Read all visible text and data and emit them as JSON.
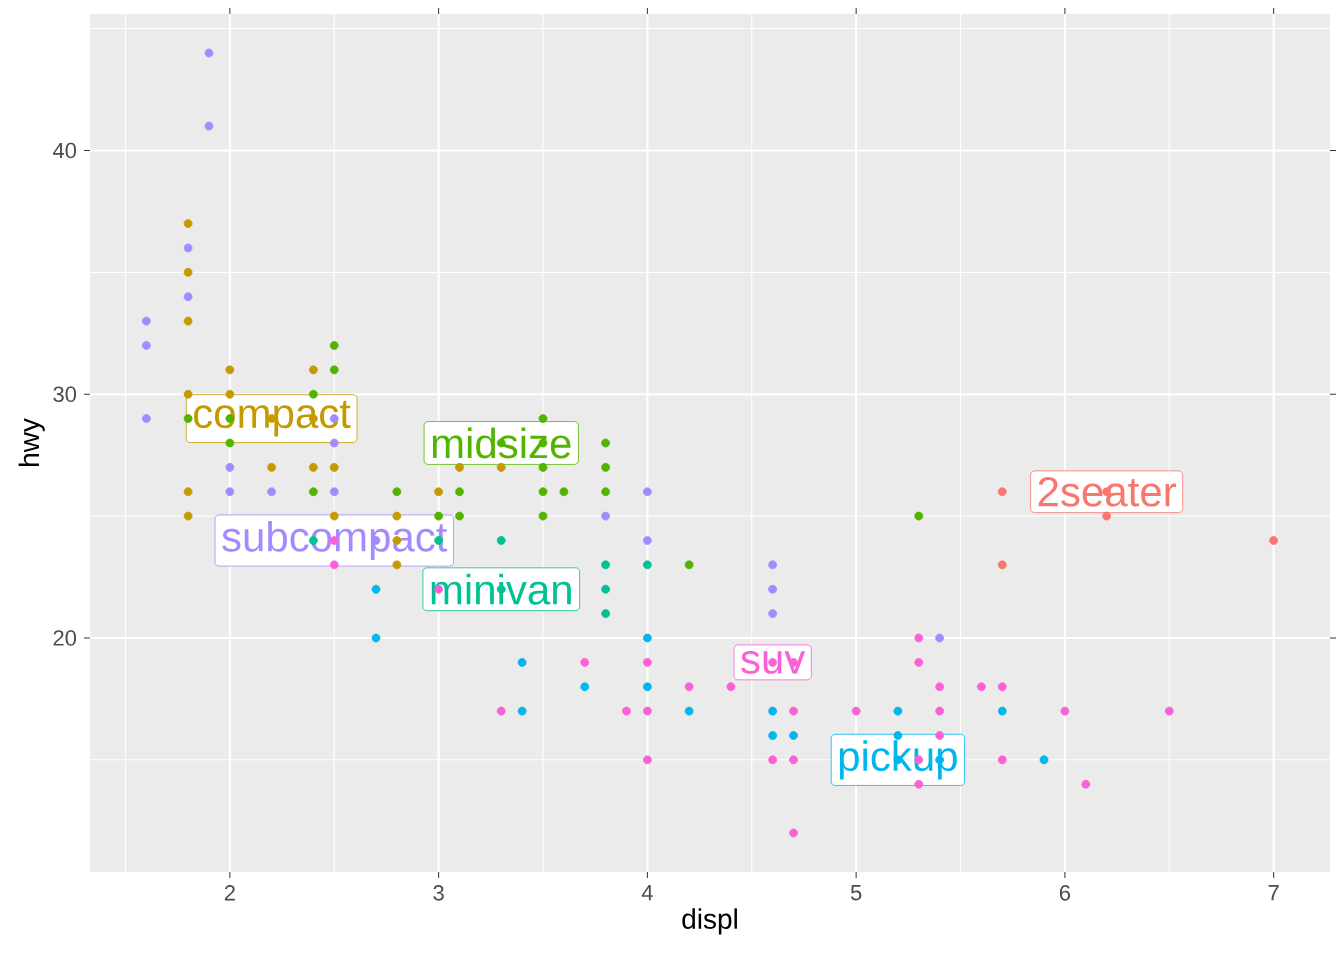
{
  "chart_data": {
    "type": "scatter",
    "xlabel": "displ",
    "ylabel": "hwy",
    "xlim": [
      1.33,
      7.27
    ],
    "ylim": [
      10.4,
      45.6
    ],
    "xticks": [
      2,
      3,
      4,
      5,
      6,
      7
    ],
    "yticks": [
      20,
      30,
      40
    ],
    "grid": true,
    "marker": "circle",
    "series": [
      {
        "color": "#f8766d",
        "x": [
          5.7,
          5.7,
          6.2,
          6.2,
          7.0
        ],
        "values": [
          26,
          23,
          26,
          25,
          24
        ]
      },
      {
        "color": "#c49a00",
        "x": [
          1.8,
          1.8,
          1.8,
          1.8,
          1.8,
          1.8,
          2.0,
          2.0,
          2.2,
          2.2,
          2.4,
          2.4,
          2.4,
          2.5,
          2.5,
          2.8,
          2.8,
          2.8,
          3.0,
          3.1,
          3.3
        ],
        "values": [
          37,
          35,
          33,
          30,
          26,
          25,
          31,
          30,
          29,
          27,
          31,
          29,
          27,
          27,
          25,
          25,
          24,
          23,
          26,
          27,
          27
        ]
      },
      {
        "color": "#53b400",
        "x": [
          1.8,
          2.0,
          2.0,
          2.4,
          2.4,
          2.5,
          2.5,
          2.8,
          3.0,
          3.1,
          3.1,
          3.3,
          3.5,
          3.5,
          3.5,
          3.5,
          3.5,
          3.6,
          3.8,
          3.8,
          3.8,
          4.2,
          5.3
        ],
        "values": [
          29,
          29,
          28,
          30,
          26,
          32,
          31,
          26,
          25,
          26,
          25,
          28,
          29,
          28,
          27,
          26,
          25,
          26,
          28,
          27,
          26,
          23,
          25
        ]
      },
      {
        "color": "#00c094",
        "x": [
          2.4,
          3.0,
          3.3,
          3.3,
          3.8,
          3.8,
          3.8,
          4.0
        ],
        "values": [
          24,
          24,
          24,
          22,
          23,
          22,
          21,
          23
        ]
      },
      {
        "color": "#00b6eb",
        "x": [
          2.7,
          2.7,
          3.4,
          3.4,
          3.7,
          4.0,
          4.0,
          4.2,
          4.6,
          4.6,
          4.7,
          5.2,
          5.2,
          5.2,
          5.4,
          5.7,
          5.9
        ],
        "values": [
          22,
          20,
          19,
          17,
          18,
          20,
          18,
          17,
          17,
          16,
          16,
          17,
          16,
          15,
          15,
          17,
          15
        ]
      },
      {
        "color": "#a58aff",
        "x": [
          1.6,
          1.6,
          1.6,
          1.8,
          1.8,
          1.9,
          1.9,
          2.0,
          2.0,
          2.2,
          2.5,
          2.5,
          2.5,
          2.7,
          3.8,
          4.0,
          4.0,
          4.6,
          4.6,
          4.6,
          5.4
        ],
        "values": [
          33,
          32,
          29,
          36,
          34,
          44,
          41,
          27,
          26,
          26,
          29,
          28,
          26,
          24,
          25,
          26,
          24,
          23,
          22,
          21,
          20
        ]
      },
      {
        "color": "#fb61d7",
        "x": [
          2.5,
          2.5,
          3.0,
          3.3,
          3.7,
          3.9,
          4.0,
          4.0,
          4.0,
          4.2,
          4.4,
          4.6,
          4.6,
          4.7,
          4.7,
          4.7,
          4.7,
          5.0,
          5.3,
          5.3,
          5.3,
          5.3,
          5.4,
          5.4,
          5.4,
          5.6,
          5.7,
          5.7,
          6.0,
          6.1,
          6.5
        ],
        "values": [
          24,
          23,
          22,
          17,
          19,
          17,
          19,
          17,
          15,
          18,
          18,
          19,
          15,
          19,
          17,
          15,
          12,
          17,
          20,
          19,
          15,
          14,
          18,
          17,
          16,
          18,
          18,
          15,
          17,
          14,
          17
        ]
      }
    ],
    "annotations": [
      {
        "text": "2seater",
        "x": 6.2,
        "y": 26
      },
      {
        "text": "compact",
        "x": 2.2,
        "y": 29
      },
      {
        "text": "midsize",
        "x": 3.3,
        "y": 28
      },
      {
        "text": "minivan",
        "x": 3.3,
        "y": 22
      },
      {
        "text": "pickup",
        "x": 5.2,
        "y": 15
      },
      {
        "text": "subcompact",
        "x": 2.5,
        "y": 24
      },
      {
        "text": "suv",
        "x": 4.6,
        "y": 19
      }
    ]
  }
}
